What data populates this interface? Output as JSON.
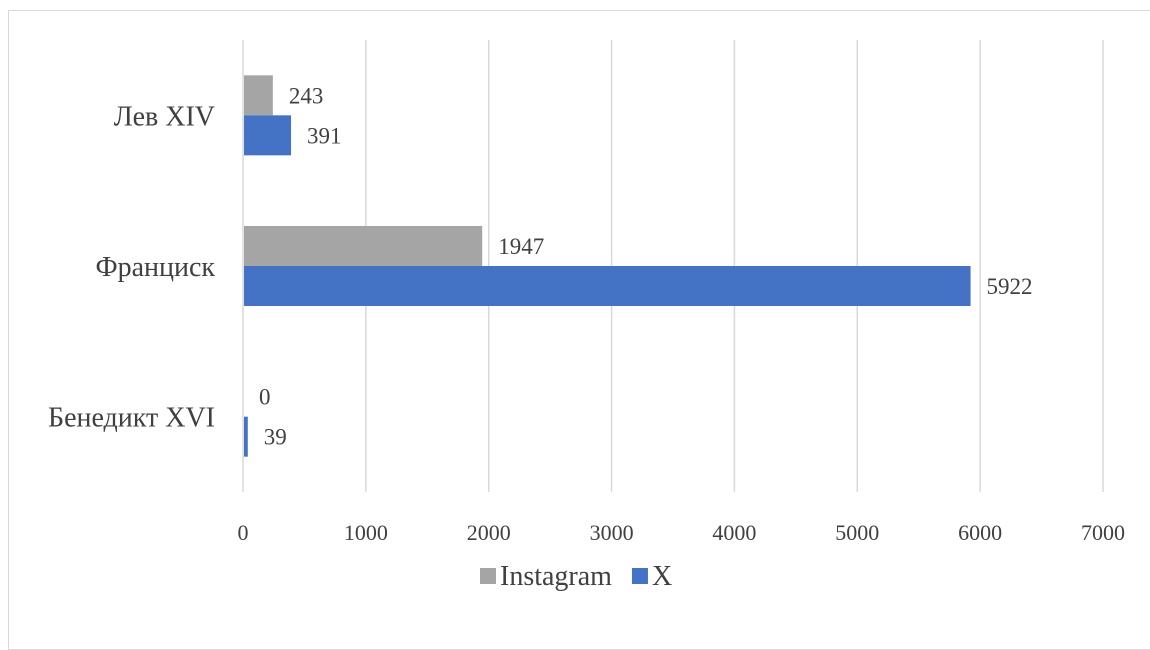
{
  "chart_data": {
    "type": "bar",
    "orientation": "horizontal",
    "categories": [
      "Лев XIV",
      "Франциск",
      "Бенедикт XVI"
    ],
    "series": [
      {
        "name": "Instagram",
        "values": [
          243,
          1947,
          0
        ],
        "color": "#a5a5a5"
      },
      {
        "name": "X",
        "values": [
          391,
          5922,
          39
        ],
        "color": "#4472c4"
      }
    ],
    "xlim": [
      0,
      7000
    ],
    "x_ticks": [
      0,
      1000,
      2000,
      3000,
      4000,
      5000,
      6000,
      7000
    ],
    "x_tick_labels": [
      "0",
      "1000",
      "2000",
      "3000",
      "4000",
      "5000",
      "6000",
      "7000"
    ],
    "grid": true,
    "data_labels": true,
    "legend_position": "bottom",
    "title": "",
    "xlabel": "",
    "ylabel": ""
  }
}
